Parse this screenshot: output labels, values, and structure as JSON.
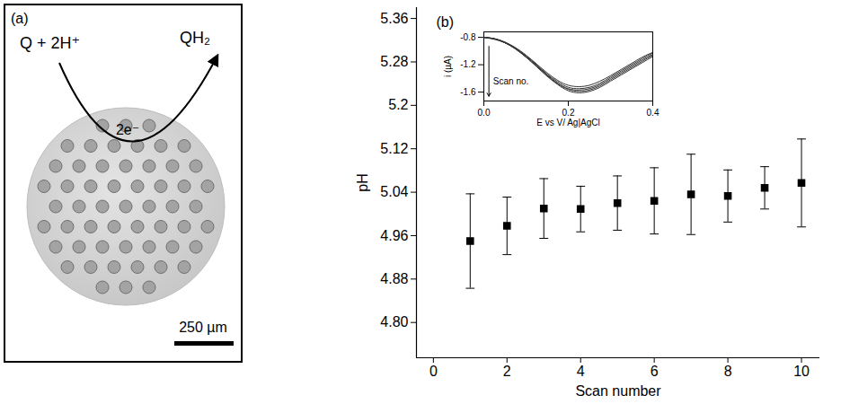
{
  "panel_a": {
    "panel_label": "(a)",
    "reaction_left": "Q + 2H⁺",
    "reaction_right": "QH₂",
    "electrons": "2e⁻",
    "scale_bar": "250 µm"
  },
  "chart_data": [
    {
      "type": "scatter",
      "panel_label": "(b)",
      "x_label": "Scan number",
      "y_label": "pH",
      "x": [
        1,
        2,
        3,
        4,
        5,
        6,
        7,
        8,
        9,
        10
      ],
      "values": [
        4.95,
        4.978,
        5.01,
        5.009,
        5.02,
        5.024,
        5.036,
        5.033,
        5.048,
        5.057
      ],
      "error": [
        0.087,
        0.053,
        0.055,
        0.042,
        0.05,
        0.061,
        0.074,
        0.048,
        0.039,
        0.081
      ],
      "color": "#000000",
      "marker": "square",
      "xlim": [
        -0.46,
        10.5
      ],
      "xticks": [
        0,
        2,
        4,
        6,
        8,
        10
      ],
      "ylim": [
        4.735,
        5.38
      ],
      "yticks": [
        {
          "value": 4.8,
          "label": "4.80"
        },
        4.88,
        4.96,
        5.04,
        5.12,
        5.2,
        5.28,
        5.36
      ],
      "grid": false
    },
    {
      "type": "line",
      "x_label": "E vs V/ Ag|AgCl",
      "y_label": "i (µA)",
      "annotation": "Scan no.",
      "x": [
        0,
        0.025,
        0.05,
        0.075,
        0.1,
        0.125,
        0.15,
        0.175,
        0.2,
        0.225,
        0.25,
        0.275,
        0.3,
        0.325,
        0.35,
        0.375,
        0.4
      ],
      "series": [
        {
          "color": "#333333",
          "values": [
            -0.8,
            -0.82,
            -0.87,
            -0.95,
            -1.06,
            -1.19,
            -1.32,
            -1.43,
            -1.5,
            -1.52,
            -1.5,
            -1.44,
            -1.36,
            -1.27,
            -1.18,
            -1.09,
            -1.02
          ]
        },
        {
          "color": "#333333",
          "values": [
            -0.8,
            -0.82,
            -0.87,
            -0.96,
            -1.07,
            -1.2,
            -1.34,
            -1.45,
            -1.53,
            -1.55,
            -1.53,
            -1.47,
            -1.38,
            -1.29,
            -1.2,
            -1.11,
            -1.03
          ]
        },
        {
          "color": "#333333",
          "values": [
            -0.8,
            -0.82,
            -0.88,
            -0.96,
            -1.08,
            -1.21,
            -1.35,
            -1.47,
            -1.55,
            -1.57,
            -1.55,
            -1.49,
            -1.4,
            -1.31,
            -1.22,
            -1.13,
            -1.05
          ]
        },
        {
          "color": "#333333",
          "values": [
            -0.8,
            -0.82,
            -0.88,
            -0.97,
            -1.09,
            -1.22,
            -1.36,
            -1.48,
            -1.56,
            -1.59,
            -1.57,
            -1.51,
            -1.42,
            -1.33,
            -1.24,
            -1.15,
            -1.06
          ]
        },
        {
          "color": "#333333",
          "values": [
            -0.8,
            -0.83,
            -0.88,
            -0.97,
            -1.09,
            -1.23,
            -1.37,
            -1.49,
            -1.58,
            -1.61,
            -1.59,
            -1.53,
            -1.44,
            -1.35,
            -1.26,
            -1.17,
            -1.08
          ]
        }
      ],
      "xlim": [
        0,
        0.4
      ],
      "xticks": [
        {
          "value": 0,
          "label": "0.0"
        },
        0.2,
        0.4
      ],
      "ylim": [
        -1.73,
        -0.72
      ],
      "yticks": [
        -0.8,
        -1.2,
        -1.6
      ],
      "grid": false
    }
  ]
}
